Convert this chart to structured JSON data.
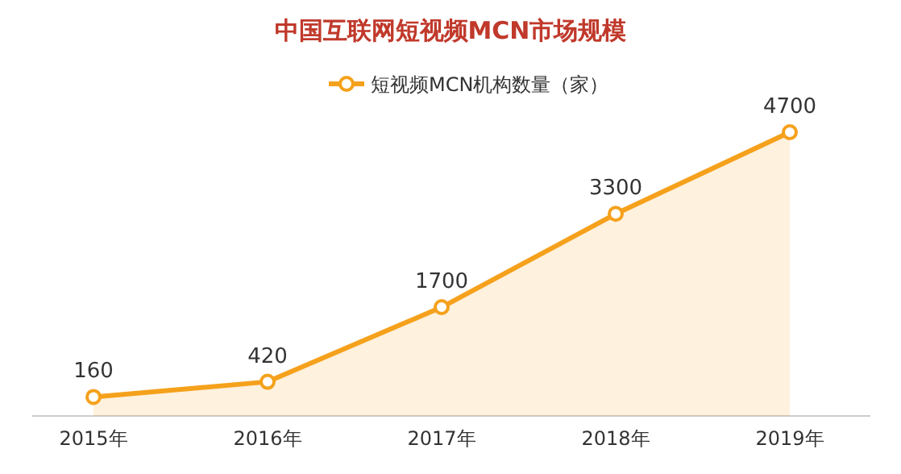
{
  "chart_data": {
    "type": "area",
    "title": "中国互联网短视频MCN市场规模",
    "categories": [
      "2015年",
      "2016年",
      "2017年",
      "2018年",
      "2019年"
    ],
    "series": [
      {
        "name": "短视频MCN机构数量（家）",
        "color": "#f5a11c",
        "values": [
          160,
          420,
          1700,
          3300,
          4700
        ]
      }
    ],
    "data_labels": true,
    "legend": "top",
    "marker": "circle"
  }
}
